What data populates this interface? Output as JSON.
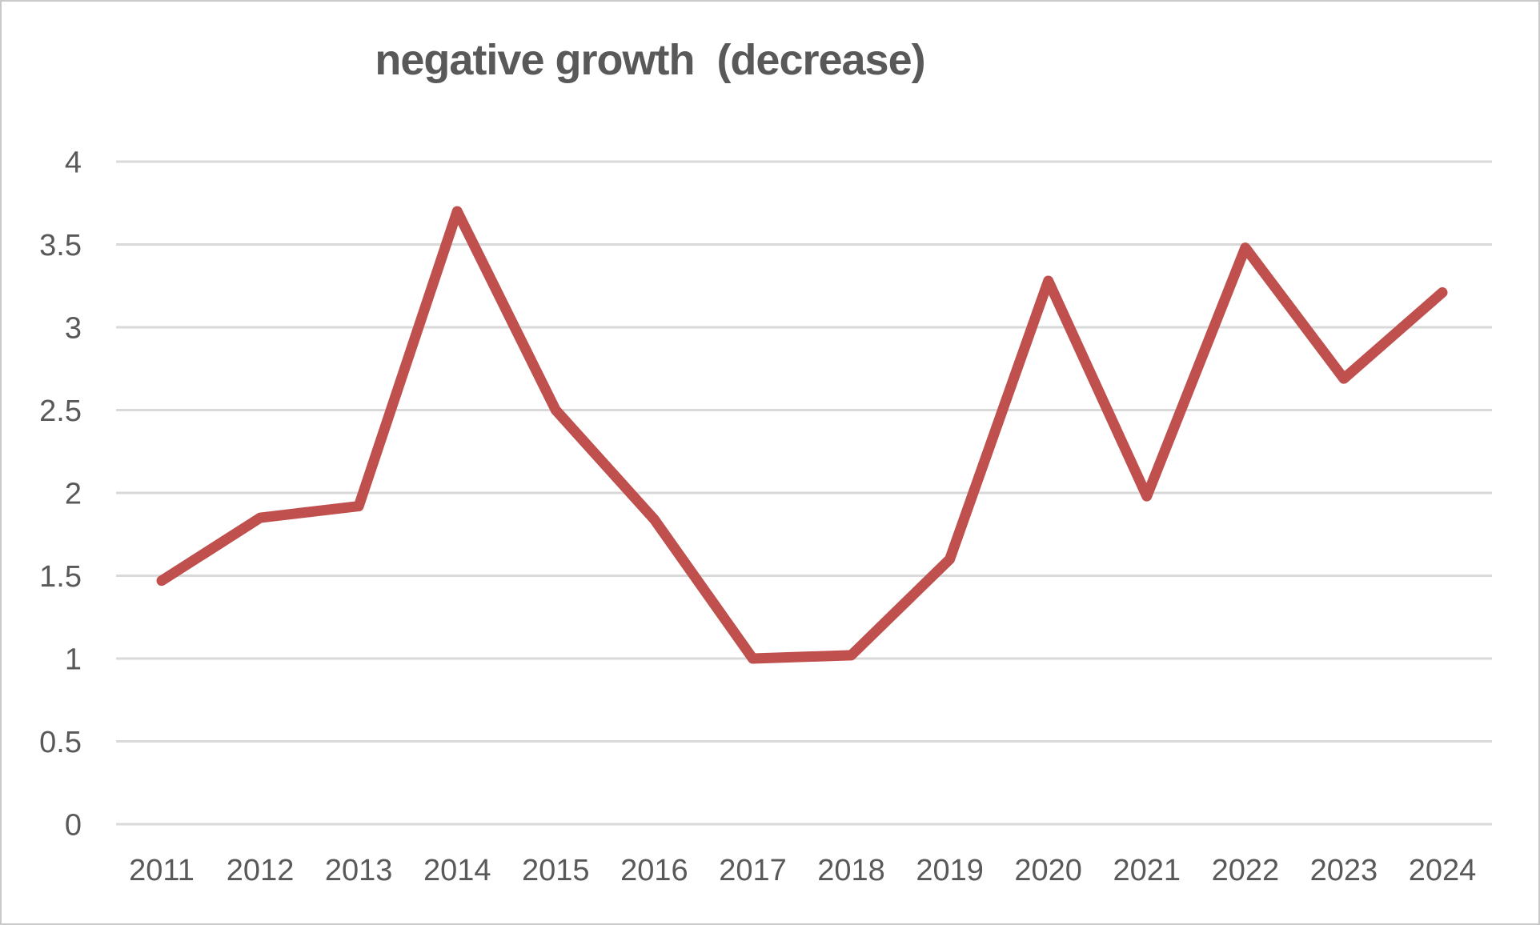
{
  "chart_data": {
    "type": "line",
    "title": "negative growth  (decrease)",
    "xlabel": "",
    "ylabel": "",
    "categories": [
      "2011",
      "2012",
      "2013",
      "2014",
      "2015",
      "2016",
      "2017",
      "2018",
      "2019",
      "2020",
      "2021",
      "2022",
      "2023",
      "2024"
    ],
    "series": [
      {
        "name": "negative growth (decrease)",
        "values": [
          1.47,
          1.85,
          1.92,
          3.7,
          2.5,
          1.84,
          1.0,
          1.02,
          1.6,
          3.28,
          1.98,
          3.48,
          2.69,
          3.21
        ]
      }
    ],
    "ylim": [
      0,
      4
    ],
    "yticks": [
      "4",
      "3.5",
      "3",
      "2.5",
      "2",
      "1.5",
      "1",
      "0.5",
      "0"
    ],
    "grid": "horizontal",
    "legend": "none"
  },
  "colors": {
    "series_line": "#c0504d",
    "gridline": "#d9d9d9",
    "axis_text": "#595959",
    "title_text": "#595959",
    "frame_border": "#c9c9c9",
    "background": "#ffffff"
  }
}
